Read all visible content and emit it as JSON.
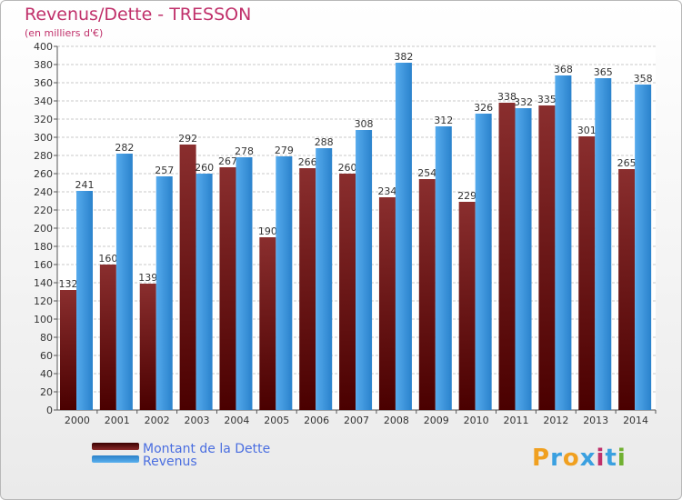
{
  "header": {
    "title": "Revenus/Dette - TRESSON",
    "subtitle": "(en milliers d'€)"
  },
  "chart_data": {
    "type": "bar",
    "title": "Revenus/Dette - TRESSON",
    "ylabel": "(en milliers d'€)",
    "xlabel": "",
    "categories": [
      "2000",
      "2001",
      "2002",
      "2003",
      "2004",
      "2005",
      "2006",
      "2007",
      "2008",
      "2009",
      "2010",
      "2011",
      "2012",
      "2013",
      "2014"
    ],
    "series": [
      {
        "name": "Montant de la Dette",
        "color": "#7a1a1a",
        "values": [
          132,
          160,
          139,
          292,
          267,
          190,
          266,
          260,
          234,
          254,
          229,
          338,
          335,
          301,
          265
        ]
      },
      {
        "name": "Revenus",
        "color": "#3b9be0",
        "values": [
          241,
          282,
          257,
          260,
          278,
          279,
          288,
          308,
          382,
          312,
          326,
          332,
          368,
          365,
          358
        ]
      }
    ],
    "ylim": [
      0,
      400
    ],
    "ytick_step": 20,
    "grid": true,
    "legend_position": "bottom-left"
  },
  "legend": {
    "items": [
      {
        "label": "Montant de la Dette",
        "color": "#7a1a1a"
      },
      {
        "label": "Revenus",
        "color": "#3b9be0"
      }
    ]
  },
  "logo": {
    "letters": [
      "P",
      "r",
      "o",
      "x",
      "i",
      "t",
      "i"
    ],
    "colors": [
      "#f0a020",
      "#3aa0e0",
      "#f0a020",
      "#3aa0e0",
      "#c0306a",
      "#3aa0e0",
      "#70b030"
    ]
  }
}
